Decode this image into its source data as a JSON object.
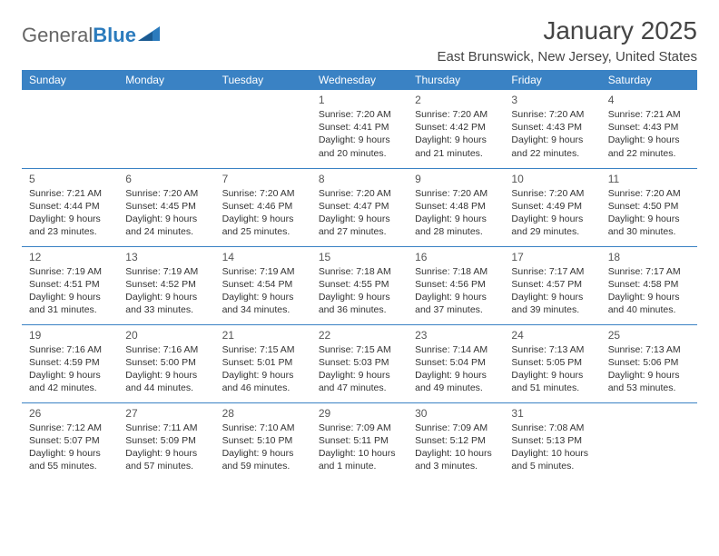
{
  "brand": {
    "text_gray": "General",
    "text_blue": "Blue"
  },
  "title": "January 2025",
  "location": "East Brunswick, New Jersey, United States",
  "colors": {
    "header_bg": "#3a82c4",
    "header_text": "#ffffff",
    "border": "#3a82c4",
    "brand_gray": "#666666",
    "brand_blue": "#2b7bbd",
    "text": "#333333",
    "title_color": "#454545"
  },
  "day_headers": [
    "Sunday",
    "Monday",
    "Tuesday",
    "Wednesday",
    "Thursday",
    "Friday",
    "Saturday"
  ],
  "weeks": [
    [
      null,
      null,
      null,
      {
        "n": "1",
        "sr": "7:20 AM",
        "ss": "4:41 PM",
        "dl": "9 hours and 20 minutes."
      },
      {
        "n": "2",
        "sr": "7:20 AM",
        "ss": "4:42 PM",
        "dl": "9 hours and 21 minutes."
      },
      {
        "n": "3",
        "sr": "7:20 AM",
        "ss": "4:43 PM",
        "dl": "9 hours and 22 minutes."
      },
      {
        "n": "4",
        "sr": "7:21 AM",
        "ss": "4:43 PM",
        "dl": "9 hours and 22 minutes."
      }
    ],
    [
      {
        "n": "5",
        "sr": "7:21 AM",
        "ss": "4:44 PM",
        "dl": "9 hours and 23 minutes."
      },
      {
        "n": "6",
        "sr": "7:20 AM",
        "ss": "4:45 PM",
        "dl": "9 hours and 24 minutes."
      },
      {
        "n": "7",
        "sr": "7:20 AM",
        "ss": "4:46 PM",
        "dl": "9 hours and 25 minutes."
      },
      {
        "n": "8",
        "sr": "7:20 AM",
        "ss": "4:47 PM",
        "dl": "9 hours and 27 minutes."
      },
      {
        "n": "9",
        "sr": "7:20 AM",
        "ss": "4:48 PM",
        "dl": "9 hours and 28 minutes."
      },
      {
        "n": "10",
        "sr": "7:20 AM",
        "ss": "4:49 PM",
        "dl": "9 hours and 29 minutes."
      },
      {
        "n": "11",
        "sr": "7:20 AM",
        "ss": "4:50 PM",
        "dl": "9 hours and 30 minutes."
      }
    ],
    [
      {
        "n": "12",
        "sr": "7:19 AM",
        "ss": "4:51 PM",
        "dl": "9 hours and 31 minutes."
      },
      {
        "n": "13",
        "sr": "7:19 AM",
        "ss": "4:52 PM",
        "dl": "9 hours and 33 minutes."
      },
      {
        "n": "14",
        "sr": "7:19 AM",
        "ss": "4:54 PM",
        "dl": "9 hours and 34 minutes."
      },
      {
        "n": "15",
        "sr": "7:18 AM",
        "ss": "4:55 PM",
        "dl": "9 hours and 36 minutes."
      },
      {
        "n": "16",
        "sr": "7:18 AM",
        "ss": "4:56 PM",
        "dl": "9 hours and 37 minutes."
      },
      {
        "n": "17",
        "sr": "7:17 AM",
        "ss": "4:57 PM",
        "dl": "9 hours and 39 minutes."
      },
      {
        "n": "18",
        "sr": "7:17 AM",
        "ss": "4:58 PM",
        "dl": "9 hours and 40 minutes."
      }
    ],
    [
      {
        "n": "19",
        "sr": "7:16 AM",
        "ss": "4:59 PM",
        "dl": "9 hours and 42 minutes."
      },
      {
        "n": "20",
        "sr": "7:16 AM",
        "ss": "5:00 PM",
        "dl": "9 hours and 44 minutes."
      },
      {
        "n": "21",
        "sr": "7:15 AM",
        "ss": "5:01 PM",
        "dl": "9 hours and 46 minutes."
      },
      {
        "n": "22",
        "sr": "7:15 AM",
        "ss": "5:03 PM",
        "dl": "9 hours and 47 minutes."
      },
      {
        "n": "23",
        "sr": "7:14 AM",
        "ss": "5:04 PM",
        "dl": "9 hours and 49 minutes."
      },
      {
        "n": "24",
        "sr": "7:13 AM",
        "ss": "5:05 PM",
        "dl": "9 hours and 51 minutes."
      },
      {
        "n": "25",
        "sr": "7:13 AM",
        "ss": "5:06 PM",
        "dl": "9 hours and 53 minutes."
      }
    ],
    [
      {
        "n": "26",
        "sr": "7:12 AM",
        "ss": "5:07 PM",
        "dl": "9 hours and 55 minutes."
      },
      {
        "n": "27",
        "sr": "7:11 AM",
        "ss": "5:09 PM",
        "dl": "9 hours and 57 minutes."
      },
      {
        "n": "28",
        "sr": "7:10 AM",
        "ss": "5:10 PM",
        "dl": "9 hours and 59 minutes."
      },
      {
        "n": "29",
        "sr": "7:09 AM",
        "ss": "5:11 PM",
        "dl": "10 hours and 1 minute."
      },
      {
        "n": "30",
        "sr": "7:09 AM",
        "ss": "5:12 PM",
        "dl": "10 hours and 3 minutes."
      },
      {
        "n": "31",
        "sr": "7:08 AM",
        "ss": "5:13 PM",
        "dl": "10 hours and 5 minutes."
      },
      null
    ]
  ],
  "labels": {
    "sunrise": "Sunrise: ",
    "sunset": "Sunset: ",
    "daylight": "Daylight: "
  }
}
